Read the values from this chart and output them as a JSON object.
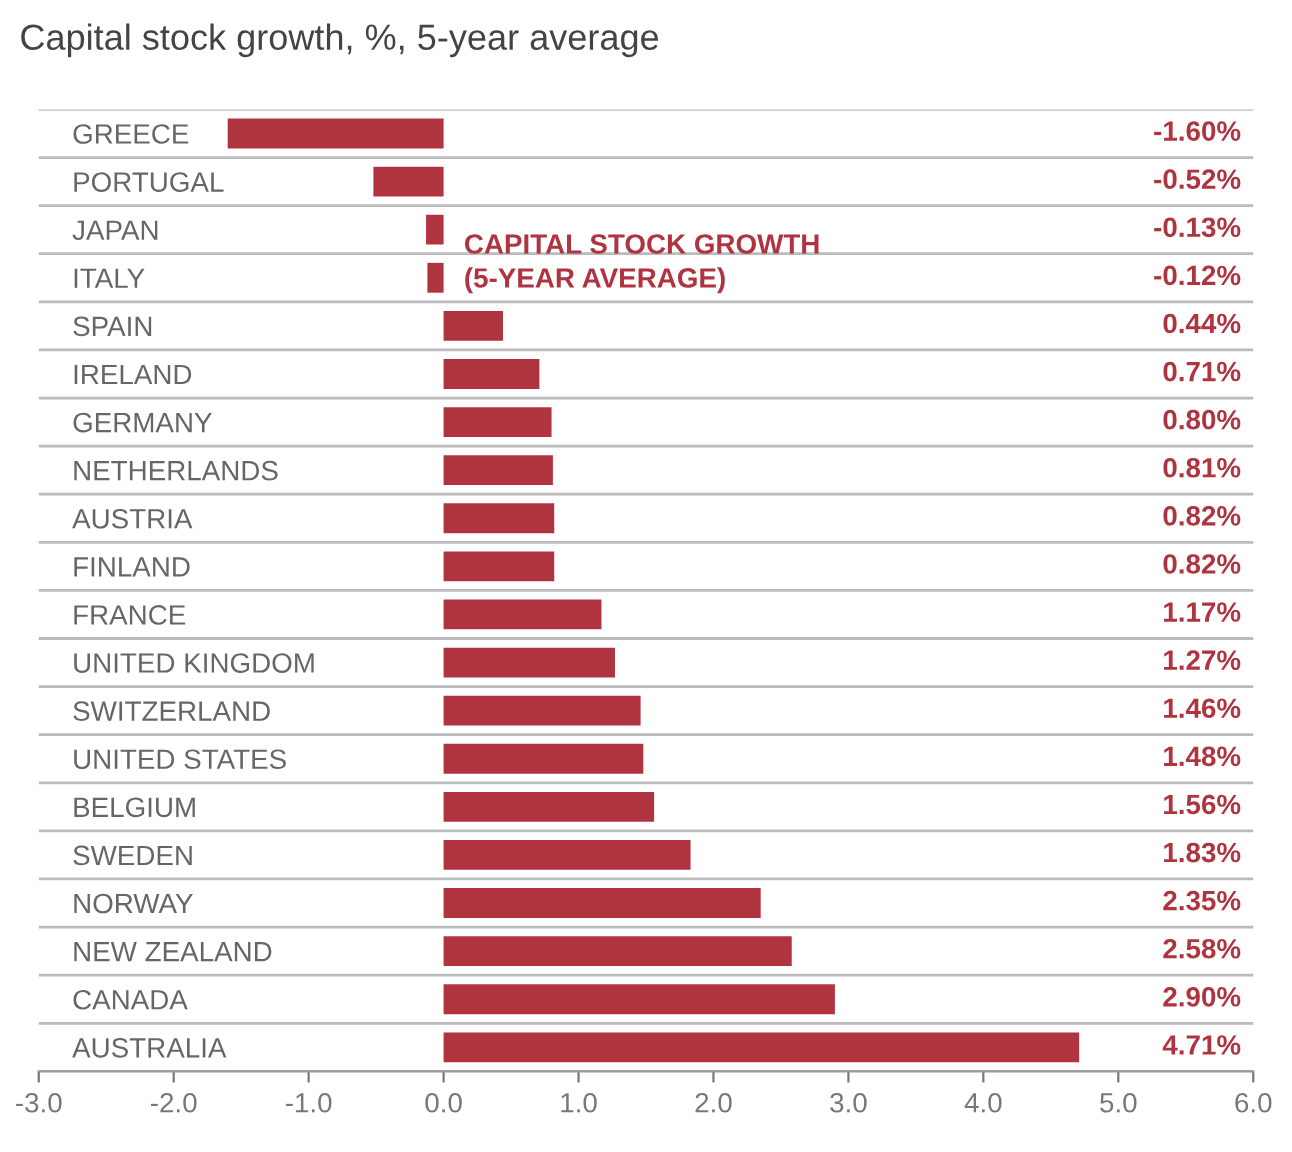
{
  "chart_data": {
    "type": "bar",
    "orientation": "horizontal",
    "title": "Capital stock growth, %, 5-year average",
    "categories": [
      "GREECE",
      "PORTUGAL",
      "JAPAN",
      "ITALY",
      "SPAIN",
      "IRELAND",
      "GERMANY",
      "NETHERLANDS",
      "AUSTRIA",
      "FINLAND",
      "FRANCE",
      "UNITED KINGDOM",
      "SWITZERLAND",
      "UNITED STATES",
      "BELGIUM",
      "SWEDEN",
      "NORWAY",
      "NEW ZEALAND",
      "CANADA",
      "AUSTRALIA"
    ],
    "values": [
      -1.6,
      -0.52,
      -0.13,
      -0.12,
      0.44,
      0.71,
      0.8,
      0.81,
      0.82,
      0.82,
      1.17,
      1.27,
      1.46,
      1.48,
      1.56,
      1.83,
      2.35,
      2.58,
      2.9,
      4.71
    ],
    "value_labels": [
      "-1.60%",
      "-0.52%",
      "-0.13%",
      "-0.12%",
      "0.44%",
      "0.71%",
      "0.80%",
      "0.81%",
      "0.82%",
      "0.82%",
      "1.17%",
      "1.27%",
      "1.46%",
      "1.48%",
      "1.56%",
      "1.83%",
      "2.35%",
      "2.58%",
      "2.90%",
      "4.71%"
    ],
    "color": "#b03440",
    "xlim": [
      -3,
      6
    ],
    "xticks": [
      {
        "value": -3,
        "label": "-3.0"
      },
      {
        "value": -2,
        "label": "-2.0"
      },
      {
        "value": -1,
        "label": "-1.0"
      },
      {
        "value": 0,
        "label": "0.0"
      },
      {
        "value": 1,
        "label": "1.0"
      },
      {
        "value": 2,
        "label": "2.0"
      },
      {
        "value": 3,
        "label": "3.0"
      },
      {
        "value": 4,
        "label": "4.0"
      },
      {
        "value": 5,
        "label": "5.0"
      },
      {
        "value": 6,
        "label": "6.0"
      }
    ],
    "annotations": [
      "CAPITAL STOCK GROWTH\n(5-YEAR AVERAGE)"
    ],
    "grid": "y",
    "legend": false
  }
}
